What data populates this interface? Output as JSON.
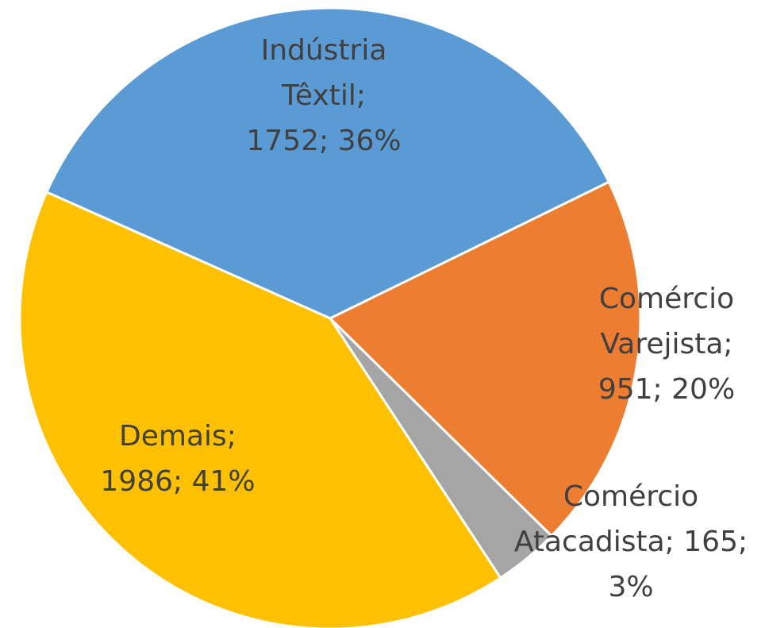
{
  "chart_data": {
    "type": "pie",
    "labels": [
      [
        "Indústria",
        "Têxtil;",
        "1752; 36%"
      ],
      [
        "Comércio",
        "Varejista;",
        "951; 20%"
      ],
      [
        "Comércio",
        "Atacadista; 165;",
        "3%"
      ],
      [
        "Demais;",
        "1986; 41%"
      ]
    ],
    "values": [
      1752,
      951,
      165,
      1986
    ],
    "colors": [
      "#5b9bd5",
      "#ed7d31",
      "#a5a5a5",
      "#ffc000"
    ]
  }
}
